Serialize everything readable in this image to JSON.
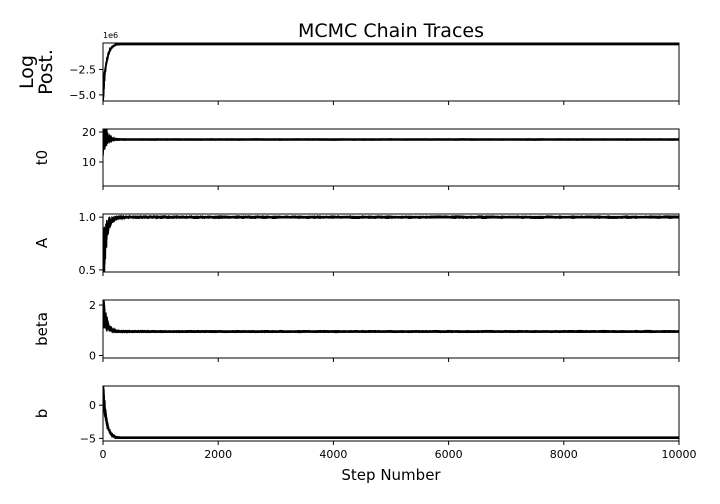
{
  "chart_data": {
    "type": "line",
    "title": "MCMC Chain Traces",
    "xlabel": "Step Number",
    "xlim": [
      0,
      10000
    ],
    "xticks": [
      0,
      2000,
      4000,
      6000,
      8000,
      10000
    ],
    "xtick_labels": [
      "0",
      "2000",
      "4000",
      "6000",
      "8000",
      "10000"
    ],
    "burn_in_steps": 200,
    "line_color": "#000000",
    "panels": [
      {
        "ylabel": "Log\nPost.",
        "ylim": [
          -5600000,
          100000
        ],
        "yticks": [
          -2500000,
          -5000000
        ],
        "ytick_labels": [
          "−2.5",
          "−5.0"
        ],
        "offset_label": "1e6",
        "start_value": -5500000,
        "converged_value": 0,
        "converged_spread": 20000,
        "burn_in_spread": 1500000
      },
      {
        "ylabel": "t0",
        "ylim": [
          2,
          21
        ],
        "yticks": [
          10,
          20
        ],
        "ytick_labels": [
          "10",
          "20"
        ],
        "offset_label": "",
        "start_value": 20,
        "converged_value": 17.5,
        "converged_spread": 0.2,
        "burn_in_spread": 10
      },
      {
        "ylabel": "A",
        "ylim": [
          0.48,
          1.03
        ],
        "yticks": [
          0.5,
          1.0
        ],
        "ytick_labels": [
          "0.5",
          "1.0"
        ],
        "offset_label": "",
        "start_value": 0.5,
        "converged_value": 1.0,
        "converged_spread": 0.012,
        "burn_in_spread": 0.45
      },
      {
        "ylabel": "beta",
        "ylim": [
          -0.1,
          2.2
        ],
        "yticks": [
          0,
          2
        ],
        "ytick_labels": [
          "0",
          "2"
        ],
        "offset_label": "",
        "start_value": 2.0,
        "converged_value": 0.95,
        "converged_spread": 0.04,
        "burn_in_spread": 1.0
      },
      {
        "ylabel": "b",
        "ylim": [
          -5.4,
          2.9
        ],
        "yticks": [
          0,
          -5
        ],
        "ytick_labels": [
          "0",
          "−5"
        ],
        "offset_label": "",
        "start_value": 2.8,
        "converged_value": -4.9,
        "converged_spread": 0.06,
        "burn_in_spread": 3.0
      }
    ]
  }
}
